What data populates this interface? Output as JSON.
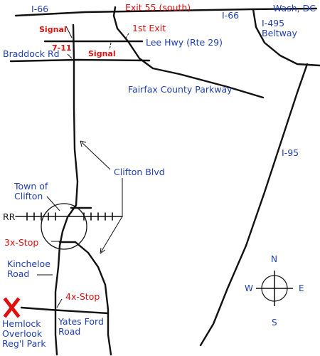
{
  "colors": {
    "road": "#111111",
    "label": "#1f3fb4",
    "alert": "#e01010"
  },
  "roads": {
    "i66": "I-66",
    "i66_right": "I-66",
    "exit": "Exit 55 (south)",
    "first_exit": "1st Exit",
    "lee_hwy": "Lee Hwy (Rte 29)",
    "braddock": "Braddock Rd",
    "fairfax_pkwy": "Fairfax County Parkway",
    "clifton_blvd": "Clifton Blvd",
    "i495_line1": "I-495",
    "i495_line2": "Beltway",
    "i95": "I-95",
    "wash_dc": "Wash, DC",
    "rr": "RR",
    "kincheloe_line1": "Kincheloe",
    "kincheloe_line2": "Road",
    "yates_line1": "Yates Ford",
    "yates_line2": "Road"
  },
  "markers": {
    "signal_top": "Signal",
    "signal_mid": "Signal",
    "seven_eleven": "7-11",
    "three_stop": "3x-Stop",
    "four_stop": "4x-Stop",
    "destination_mark": "X"
  },
  "places": {
    "town_line1": "Town of",
    "town_line2": "Clifton",
    "park_line1": "Hemlock",
    "park_line2": "Overlook",
    "park_line3": "Reg'l Park"
  },
  "compass": {
    "n": "N",
    "s": "S",
    "e": "E",
    "w": "W"
  }
}
